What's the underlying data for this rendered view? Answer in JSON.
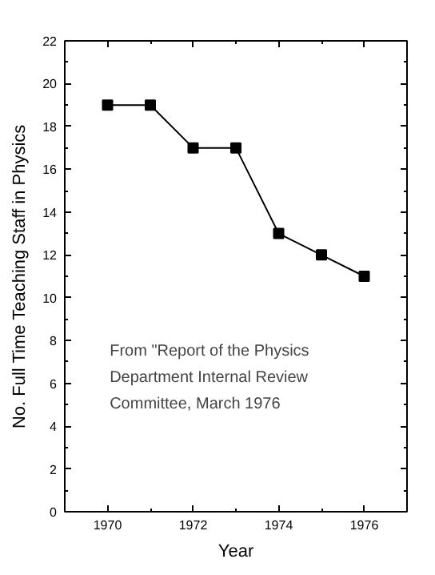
{
  "chart_data": {
    "type": "line",
    "xlabel": "Year",
    "ylabel": "No. Full Time Teaching Staff in Physics",
    "x": [
      1970,
      1971,
      1972,
      1973,
      1974,
      1975,
      1976
    ],
    "values": [
      19,
      19,
      17,
      17,
      13,
      12,
      11
    ],
    "color": "#000000",
    "marker": "square",
    "line_style": "solid",
    "grid": false,
    "xlim": [
      1969,
      1977
    ],
    "xticks": [
      1970,
      1972,
      1974,
      1976
    ],
    "ylim": [
      0,
      22
    ],
    "yticks": [
      0,
      2,
      4,
      6,
      8,
      10,
      12,
      14,
      16,
      18,
      20,
      22
    ],
    "annotations": [
      "From \"Report of the Physics\nDepartment Internal Review\nCommittee, March 1976"
    ]
  }
}
